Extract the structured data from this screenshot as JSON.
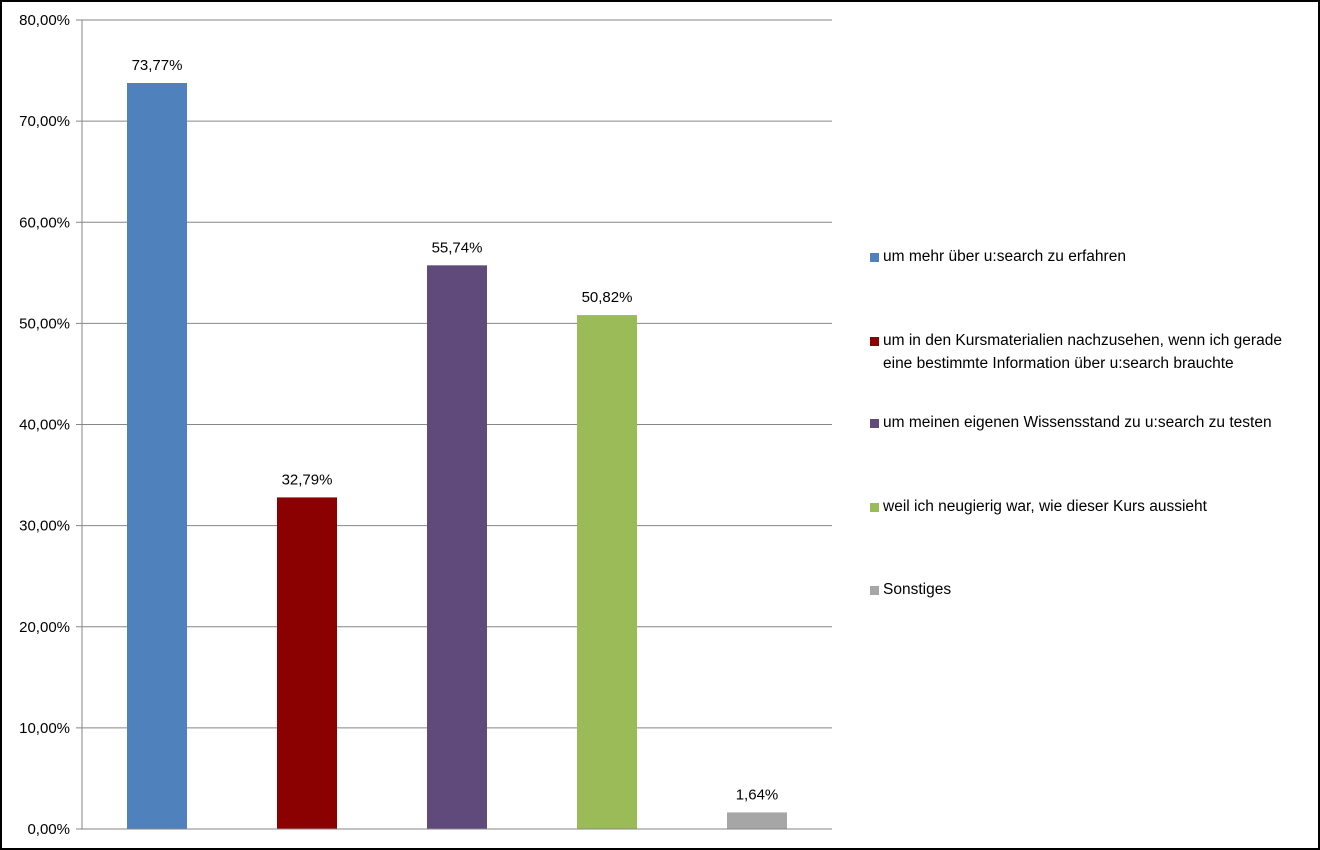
{
  "chart_data": {
    "type": "bar",
    "categories": [
      "um mehr über u:search zu erfahren",
      "um in den Kursmaterialien nachzusehen, wenn ich gerade eine bestimmte Information über u:search brauchte",
      "um meinen eigenen Wissensstand zu u:search zu testen",
      "weil ich neugierig war, wie dieser Kurs aussieht",
      "Sonstiges"
    ],
    "values": [
      73.77,
      32.79,
      55.74,
      50.82,
      1.64
    ],
    "value_labels": [
      "73,77%",
      "32,79%",
      "55,74%",
      "50,82%",
      "1,64%"
    ],
    "colors": [
      "#4F81BD",
      "#8B0000",
      "#604A7B",
      "#9BBB59",
      "#A6A6A6"
    ],
    "ylim": [
      0,
      80
    ],
    "yticks": [
      "0,00%",
      "10,00%",
      "20,00%",
      "30,00%",
      "40,00%",
      "50,00%",
      "60,00%",
      "70,00%",
      "80,00%"
    ],
    "grid": true,
    "legend_position": "right"
  }
}
